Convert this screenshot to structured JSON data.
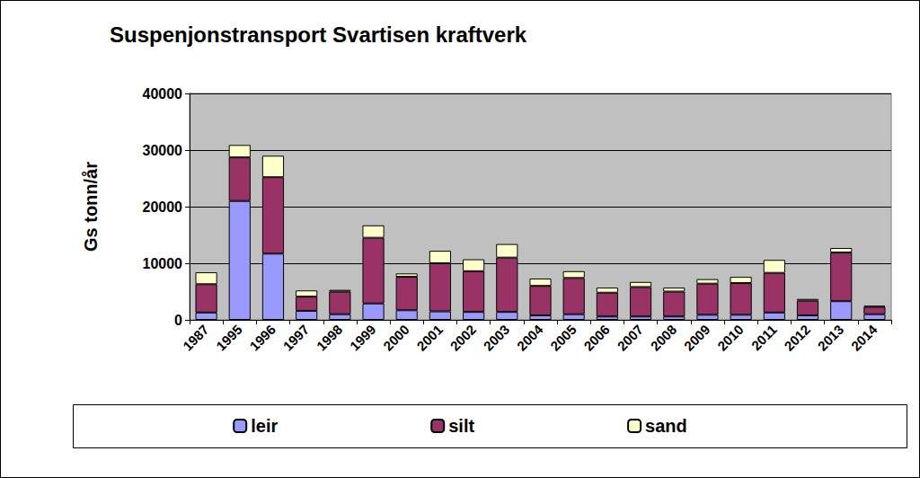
{
  "chart_data": {
    "type": "bar",
    "title": "Suspenjonstransport Svartisen kraftverk",
    "y_label": "Gs tonn/år",
    "categories": [
      "1987",
      "1995",
      "1996",
      "1997",
      "1998",
      "1999",
      "2000",
      "2001",
      "2002",
      "2003",
      "2004",
      "2005",
      "2006",
      "2007",
      "2008",
      "2009",
      "2010",
      "2011",
      "2012",
      "2013",
      "2014"
    ],
    "series": [
      {
        "name": "leir",
        "color": "#9999ff",
        "values": [
          1300,
          21000,
          11700,
          1600,
          1000,
          2900,
          1700,
          1500,
          1400,
          1400,
          800,
          1000,
          600,
          600,
          600,
          900,
          900,
          1300,
          800,
          3300,
          1000
        ]
      },
      {
        "name": "silt",
        "color": "#993366",
        "values": [
          5000,
          7700,
          13500,
          2500,
          4000,
          11600,
          5900,
          8500,
          7200,
          9600,
          5200,
          6400,
          4200,
          5200,
          4400,
          5500,
          5600,
          7000,
          2600,
          8600,
          1300
        ]
      },
      {
        "name": "sand",
        "color": "#ffffcc",
        "values": [
          2100,
          2200,
          3800,
          1100,
          300,
          2200,
          600,
          2200,
          2100,
          2400,
          1300,
          1200,
          900,
          900,
          700,
          800,
          1100,
          2300,
          300,
          800,
          200
        ]
      }
    ],
    "ylim": [
      0,
      40000
    ],
    "yticks": [
      0,
      10000,
      20000,
      30000,
      40000
    ],
    "stacked": true,
    "grid": true,
    "legend": "bottom"
  }
}
